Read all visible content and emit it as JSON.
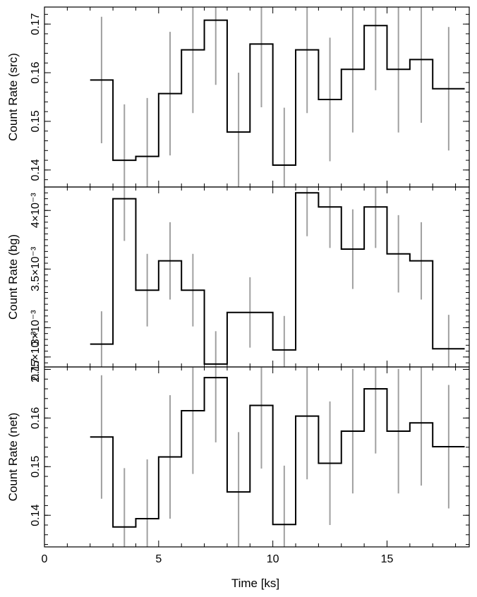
{
  "chart_data": [
    {
      "type": "line",
      "ylabel": "Count Rate (src)",
      "xlim": [
        0,
        18.6
      ],
      "ylim": [
        0.1365,
        0.1735
      ],
      "yticks": [
        "0.14",
        "0.15",
        "0.16",
        "0.17"
      ],
      "ytick_values": [
        0.14,
        0.15,
        0.16,
        0.17
      ],
      "bins": [
        {
          "x0": 2.0,
          "x1": 3.0,
          "y": 0.1585,
          "err": 0.013
        },
        {
          "x0": 3.0,
          "x1": 4.0,
          "y": 0.142,
          "err": 0.0115
        },
        {
          "x0": 4.0,
          "x1": 5.0,
          "y": 0.1428,
          "err": 0.012
        },
        {
          "x0": 5.0,
          "x1": 6.0,
          "y": 0.1557,
          "err": 0.0127
        },
        {
          "x0": 6.0,
          "x1": 7.0,
          "y": 0.1647,
          "err": 0.013
        },
        {
          "x0": 7.0,
          "x1": 8.0,
          "y": 0.1708,
          "err": 0.0133
        },
        {
          "x0": 8.0,
          "x1": 9.0,
          "y": 0.1478,
          "err": 0.0122
        },
        {
          "x0": 9.0,
          "x1": 10.0,
          "y": 0.1659,
          "err": 0.013
        },
        {
          "x0": 10.0,
          "x1": 11.0,
          "y": 0.141,
          "err": 0.0118
        },
        {
          "x0": 11.0,
          "x1": 12.0,
          "y": 0.1647,
          "err": 0.013
        },
        {
          "x0": 12.0,
          "x1": 13.0,
          "y": 0.1545,
          "err": 0.0127
        },
        {
          "x0": 13.0,
          "x1": 14.0,
          "y": 0.1607,
          "err": 0.013
        },
        {
          "x0": 14.0,
          "x1": 15.0,
          "y": 0.1697,
          "err": 0.0133
        },
        {
          "x0": 15.0,
          "x1": 16.0,
          "y": 0.1607,
          "err": 0.013
        },
        {
          "x0": 16.0,
          "x1": 17.0,
          "y": 0.1627,
          "err": 0.013
        },
        {
          "x0": 17.0,
          "x1": 18.4,
          "y": 0.1567,
          "err": 0.0127
        }
      ]
    },
    {
      "type": "line",
      "ylabel": "Count Rate (bg)",
      "xlim": [
        0,
        18.6
      ],
      "ylim": [
        0.002665,
        0.0042
      ],
      "yticks": [
        "2.75×10⁻³",
        "3×10⁻³",
        "3.5×10⁻³",
        "4×10⁻³"
      ],
      "ytick_values": [
        0.00275,
        0.003,
        0.0035,
        0.004
      ],
      "bins": [
        {
          "x0": 2.0,
          "x1": 3.0,
          "y": 0.00286,
          "err": 0.00028
        },
        {
          "x0": 3.0,
          "x1": 4.0,
          "y": 0.0041,
          "err": 0.00036
        },
        {
          "x0": 4.0,
          "x1": 5.0,
          "y": 0.00332,
          "err": 0.00031
        },
        {
          "x0": 5.0,
          "x1": 6.0,
          "y": 0.00357,
          "err": 0.00033
        },
        {
          "x0": 6.0,
          "x1": 7.0,
          "y": 0.00332,
          "err": 0.00031
        },
        {
          "x0": 7.0,
          "x1": 8.0,
          "y": 0.00269,
          "err": 0.00028
        },
        {
          "x0": 8.0,
          "x1": 10.0,
          "y": 0.00313,
          "err": 0.0003
        },
        {
          "x0": 10.0,
          "x1": 11.0,
          "y": 0.00281,
          "err": 0.00029
        },
        {
          "x0": 11.0,
          "x1": 12.0,
          "y": 0.00415,
          "err": 0.00037
        },
        {
          "x0": 12.0,
          "x1": 13.0,
          "y": 0.00403,
          "err": 0.00035
        },
        {
          "x0": 13.0,
          "x1": 14.0,
          "y": 0.00367,
          "err": 0.00034
        },
        {
          "x0": 14.0,
          "x1": 15.0,
          "y": 0.00403,
          "err": 0.00035
        },
        {
          "x0": 15.0,
          "x1": 16.0,
          "y": 0.00363,
          "err": 0.00033
        },
        {
          "x0": 16.0,
          "x1": 17.0,
          "y": 0.00357,
          "err": 0.00033
        },
        {
          "x0": 17.0,
          "x1": 18.4,
          "y": 0.00282,
          "err": 0.00029
        }
      ]
    },
    {
      "type": "line",
      "ylabel": "Count Rate (net)",
      "xlabel": "Time [ks]",
      "xlim": [
        0,
        18.6
      ],
      "ylim": [
        0.1335,
        0.1705
      ],
      "yticks": [
        "0.14",
        "0.15",
        "0.16",
        "0.17"
      ],
      "ytick_values": [
        0.14,
        0.15,
        0.16,
        0.17
      ],
      "xticks": [
        "0",
        "5",
        "10",
        "15"
      ],
      "xtick_values": [
        0,
        5,
        10,
        15
      ],
      "bins": [
        {
          "x0": 2.0,
          "x1": 3.0,
          "y": 0.1561,
          "err": 0.0127
        },
        {
          "x0": 3.0,
          "x1": 4.0,
          "y": 0.1376,
          "err": 0.0121
        },
        {
          "x0": 4.0,
          "x1": 5.0,
          "y": 0.1393,
          "err": 0.0122
        },
        {
          "x0": 5.0,
          "x1": 6.0,
          "y": 0.152,
          "err": 0.0127
        },
        {
          "x0": 6.0,
          "x1": 7.0,
          "y": 0.1615,
          "err": 0.013
        },
        {
          "x0": 7.0,
          "x1": 8.0,
          "y": 0.1683,
          "err": 0.0133
        },
        {
          "x0": 8.0,
          "x1": 9.0,
          "y": 0.1448,
          "err": 0.0123
        },
        {
          "x0": 9.0,
          "x1": 10.0,
          "y": 0.1626,
          "err": 0.013
        },
        {
          "x0": 10.0,
          "x1": 11.0,
          "y": 0.1381,
          "err": 0.0121
        },
        {
          "x0": 11.0,
          "x1": 12.0,
          "y": 0.1604,
          "err": 0.013
        },
        {
          "x0": 12.0,
          "x1": 13.0,
          "y": 0.1507,
          "err": 0.0127
        },
        {
          "x0": 13.0,
          "x1": 14.0,
          "y": 0.1573,
          "err": 0.0128
        },
        {
          "x0": 14.0,
          "x1": 15.0,
          "y": 0.166,
          "err": 0.0133
        },
        {
          "x0": 15.0,
          "x1": 16.0,
          "y": 0.1573,
          "err": 0.0128
        },
        {
          "x0": 16.0,
          "x1": 17.0,
          "y": 0.159,
          "err": 0.0129
        },
        {
          "x0": 17.0,
          "x1": 18.4,
          "y": 0.1541,
          "err": 0.0127
        }
      ]
    }
  ],
  "colors": {
    "step_line": "#000000",
    "error_bars": "#a0a0a0",
    "axes": "#000000"
  }
}
